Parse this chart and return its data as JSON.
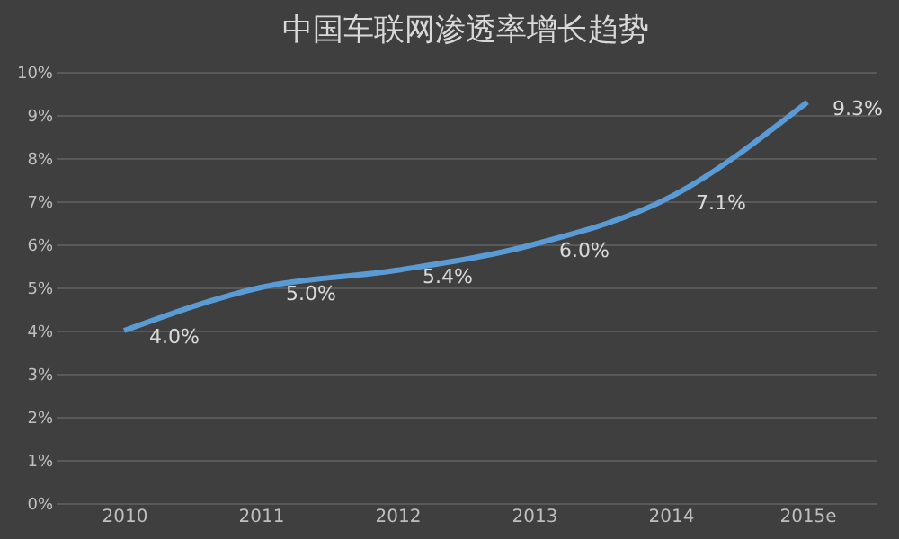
{
  "chart_data": {
    "type": "line",
    "title": "中国车联网渗透率增长趋势",
    "categories": [
      "2010",
      "2011",
      "2012",
      "2013",
      "2014",
      "2015e"
    ],
    "series": [
      {
        "color": "#5b9bd5",
        "values": [
          4.0,
          5.0,
          5.4,
          6.0,
          7.1,
          9.3
        ]
      }
    ],
    "value_labels": [
      "4.0%",
      "5.0%",
      "5.4%",
      "6.0%",
      "7.1%",
      "9.3%"
    ],
    "ylim": [
      0,
      10
    ],
    "yticks": [
      {
        "value": 0,
        "label": "0%"
      },
      {
        "value": 1,
        "label": "1%"
      },
      {
        "value": 2,
        "label": "2%"
      },
      {
        "value": 3,
        "label": "3%"
      },
      {
        "value": 4,
        "label": "4%"
      },
      {
        "value": 5,
        "label": "5%"
      },
      {
        "value": 6,
        "label": "6%"
      },
      {
        "value": 7,
        "label": "7%"
      },
      {
        "value": 8,
        "label": "8%"
      },
      {
        "value": 9,
        "label": "9%"
      },
      {
        "value": 10,
        "label": "10%"
      }
    ],
    "grid": "y",
    "legend": false,
    "marker": "none",
    "line_style": "solid"
  }
}
